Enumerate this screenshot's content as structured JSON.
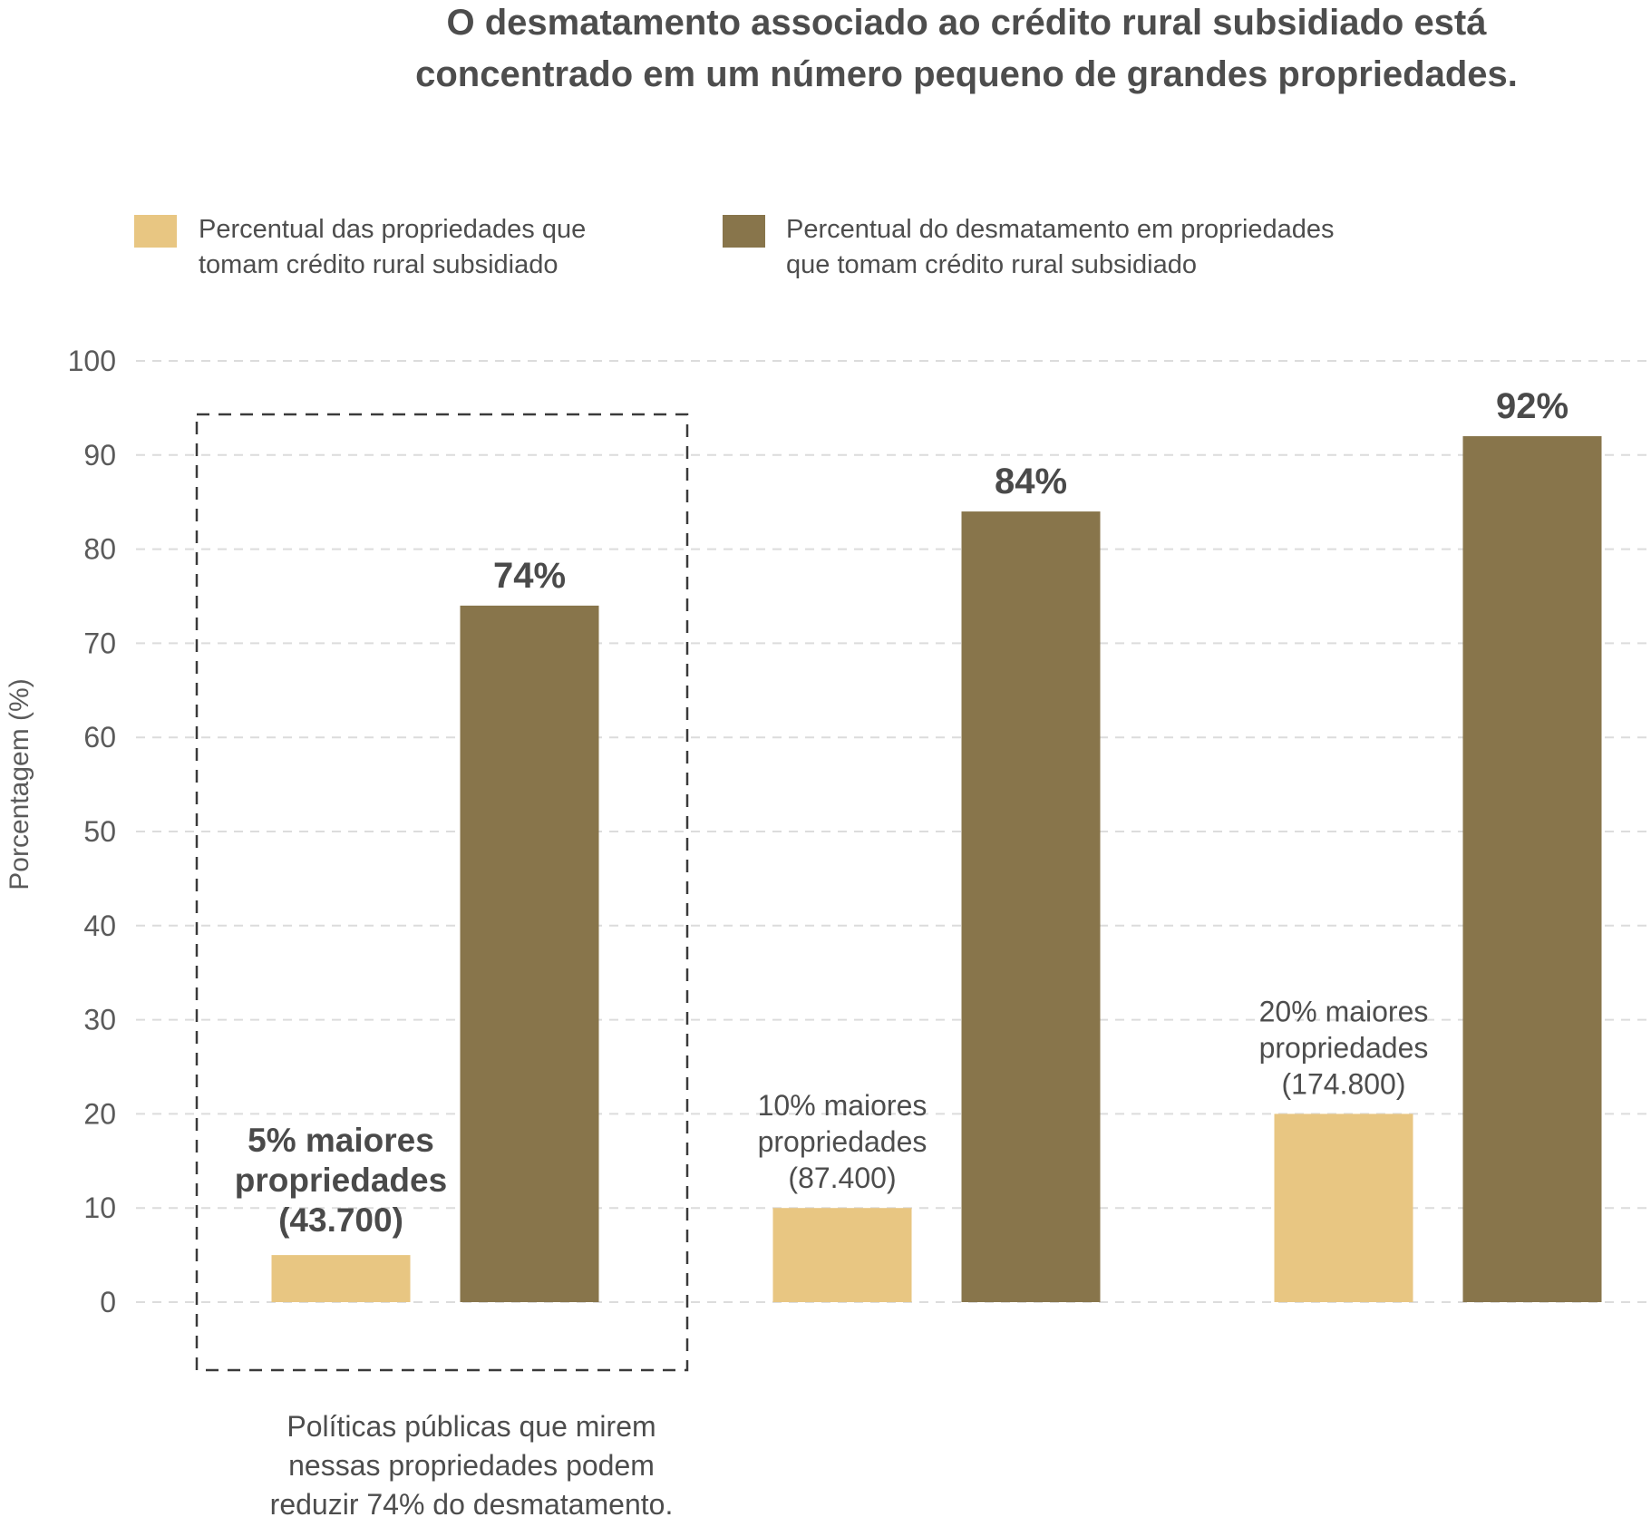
{
  "chart_data": {
    "type": "bar",
    "title": [
      "O desmatamento associado ao crédito rural subsidiado está",
      "concentrado em um número pequeno de grandes propriedades."
    ],
    "ylabel": "Porcentagem (%)",
    "xlabel": "",
    "ylim": [
      0,
      100
    ],
    "yticks": [
      0,
      10,
      20,
      30,
      40,
      50,
      60,
      70,
      80,
      90,
      100
    ],
    "grid": true,
    "legend_position": "top",
    "categories": [
      [
        "5% maiores",
        "propriedades",
        "(43.700)"
      ],
      [
        "10% maiores",
        "propriedades",
        "(87.400)"
      ],
      [
        "20% maiores",
        "propriedades",
        "(174.800)"
      ]
    ],
    "highlight_category": 0,
    "series": [
      {
        "name": [
          "Percentual das propriedades que",
          "tomam crédito rural subsidiado"
        ],
        "color": "#e8c682",
        "values": [
          5,
          10,
          20
        ]
      },
      {
        "name": [
          "Percentual do desmatamento em propriedades",
          "que tomam crédito rural subsidiado"
        ],
        "color": "#88754b",
        "values": [
          74,
          84,
          92
        ],
        "value_labels": [
          "74%",
          "84%",
          "92%"
        ]
      }
    ],
    "annotation": [
      "Políticas públicas que mirem",
      "nessas propriedades podem",
      "reduzir 74% do desmatamento."
    ]
  },
  "colors": {
    "text": "#4a4a4a",
    "grid": "#dcdcdc",
    "box": "#3a3a3a"
  }
}
